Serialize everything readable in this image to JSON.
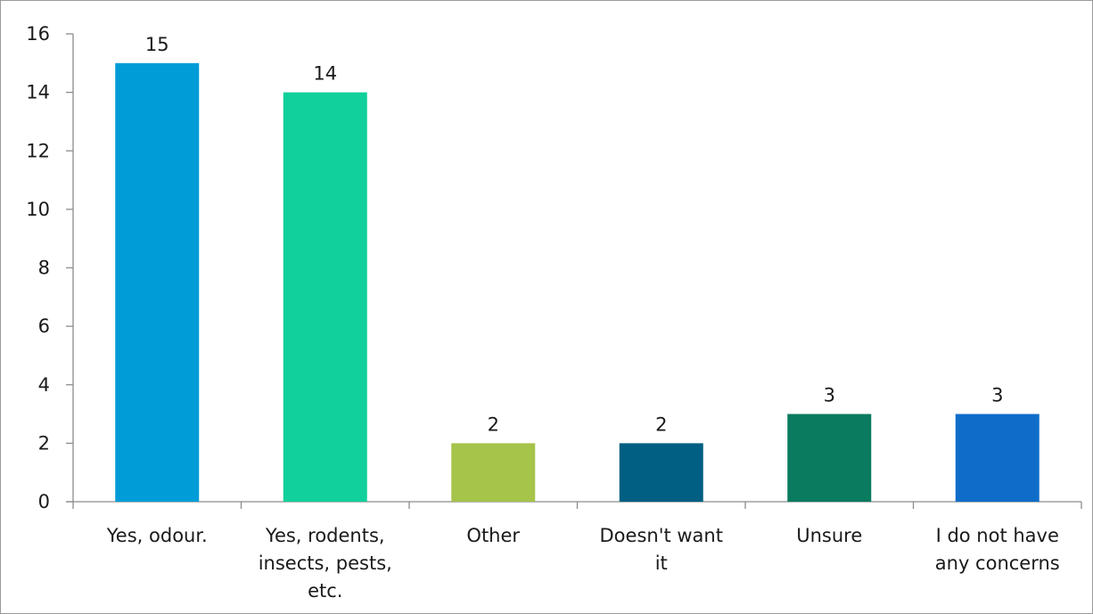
{
  "chart_data": {
    "type": "bar",
    "categories": [
      [
        "Yes, odour."
      ],
      [
        "Yes, rodents,",
        "insects, pests,",
        "etc."
      ],
      [
        "Other"
      ],
      [
        "Doesn't want",
        "it"
      ],
      [
        "Unsure"
      ],
      [
        "I do not have",
        "any concerns"
      ]
    ],
    "values": [
      15,
      14,
      2,
      2,
      3,
      3
    ],
    "colors": [
      "#009cd8",
      "#11d09b",
      "#a6c34a",
      "#005f82",
      "#0a7b5e",
      "#0f6dc9"
    ],
    "ylim": [
      0,
      16
    ],
    "yticks": [
      0,
      2,
      4,
      6,
      8,
      10,
      12,
      14,
      16
    ],
    "data_labels": [
      "15",
      "14",
      "2",
      "2",
      "3",
      "3"
    ],
    "ytick_labels": [
      "0",
      "2",
      "4",
      "6",
      "8",
      "10",
      "12",
      "14",
      "16"
    ],
    "grid": false,
    "legend": "none",
    "title": "",
    "xlabel": "",
    "ylabel": ""
  }
}
